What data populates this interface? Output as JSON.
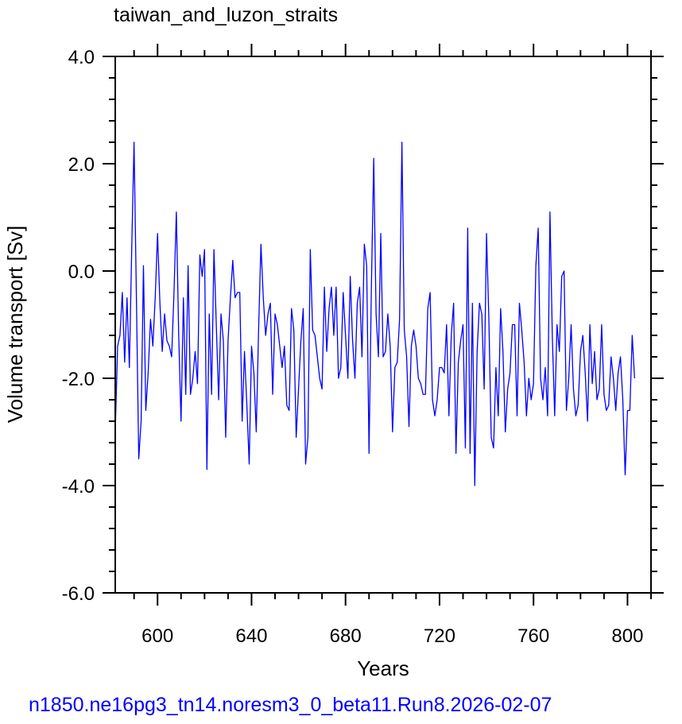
{
  "chart_data": {
    "type": "line",
    "title": "taiwan_and_luzon_straits",
    "xlabel": "Years",
    "ylabel": "Volume transport [Sv]",
    "footer": "n1850.ne16pg3_tn14.noresm3_0_beta11.Run8.2026-02-07",
    "xlim": [
      582,
      810
    ],
    "ylim": [
      -6.0,
      4.0
    ],
    "x_ticks": [
      600,
      640,
      680,
      720,
      760,
      800
    ],
    "x_tick_labels": [
      "600",
      "640",
      "680",
      "720",
      "760",
      "800"
    ],
    "y_ticks": [
      -6.0,
      -4.0,
      -2.0,
      0.0,
      2.0,
      4.0
    ],
    "y_tick_labels": [
      "-6.0",
      "-4.0",
      "-2.0",
      "0.0",
      "2.0",
      "4.0"
    ],
    "line_color": "#0000ff",
    "grid": false,
    "series": [
      {
        "x_start": 582,
        "x_step": 1,
        "values": [
          -3.0,
          -1.4,
          -1.2,
          -0.4,
          -1.7,
          -0.5,
          -1.8,
          0.4,
          2.4,
          -0.5,
          -3.5,
          -2.8,
          0.1,
          -2.6,
          -1.9,
          -0.9,
          -1.4,
          -0.5,
          0.7,
          -0.6,
          -1.5,
          -0.8,
          -1.3,
          -1.4,
          -1.6,
          -0.4,
          1.1,
          -1.2,
          -2.8,
          -0.5,
          -2.3,
          0.1,
          -2.3,
          -2.0,
          -1.5,
          -2.1,
          0.3,
          -0.1,
          0.4,
          -3.7,
          -0.8,
          -2.3,
          0.4,
          -1.0,
          -2.4,
          -0.8,
          -1.3,
          -3.1,
          -1.3,
          -0.5,
          0.2,
          -0.5,
          -0.4,
          -0.4,
          -2.8,
          -1.5,
          -2.5,
          -3.6,
          -1.4,
          -1.9,
          -3.0,
          -1.1,
          0.5,
          -0.5,
          -1.2,
          -0.8,
          -0.6,
          -2.3,
          -0.8,
          -1.0,
          -1.4,
          -1.8,
          -1.4,
          -2.5,
          -2.6,
          -0.7,
          -1.1,
          -3.1,
          -2.2,
          -1.3,
          -0.7,
          -3.6,
          -3.1,
          0.4,
          -1.1,
          -1.2,
          -1.6,
          -2.0,
          -2.2,
          -0.3,
          -1.5,
          -0.7,
          -0.3,
          -1.2,
          -0.3,
          -2.0,
          -1.8,
          -0.4,
          -1.2,
          -2.0,
          -0.1,
          -1.3,
          -2.0,
          -0.6,
          -0.3,
          -1.6,
          0.5,
          0.1,
          -3.4,
          -0.3,
          2.1,
          -0.8,
          -1.6,
          0.7,
          -1.6,
          -1.5,
          -0.8,
          -1.4,
          -3.0,
          -1.8,
          -1.7,
          -0.9,
          2.4,
          -1.1,
          -1.6,
          -2.9,
          -1.4,
          -1.1,
          -1.4,
          -2.0,
          -2.1,
          -2.3,
          -2.3,
          -0.7,
          -0.4,
          -2.4,
          -2.7,
          -2.4,
          -1.8,
          -1.8,
          -1.9,
          -1.0,
          -2.7,
          -1.2,
          -0.6,
          -3.4,
          -1.7,
          -1.3,
          -1.0,
          -3.3,
          0.8,
          -3.4,
          -0.6,
          -4.0,
          -1.5,
          -0.6,
          -0.8,
          -2.2,
          0.7,
          -0.9,
          -3.1,
          -3.3,
          -1.8,
          -2.7,
          -0.7,
          -1.5,
          -3.0,
          -2.2,
          -1.9,
          -1.0,
          -1.0,
          -2.7,
          -0.6,
          -1.1,
          -1.7,
          -2.7,
          -2.0,
          -2.4,
          -2.1,
          0.1,
          0.8,
          -2.0,
          -2.4,
          -1.8,
          -2.7,
          1.1,
          -1.2,
          -2.7,
          -1.0,
          -1.5,
          -0.1,
          0.0,
          -2.6,
          -2.0,
          -1.0,
          -2.2,
          -2.7,
          -2.5,
          -1.5,
          -1.2,
          -1.9,
          -2.8,
          -1.0,
          -2.1,
          -1.5,
          -2.4,
          -2.2,
          -1.0,
          -2.3,
          -2.6,
          -2.5,
          -1.6,
          -2.0,
          -2.6,
          -1.9,
          -1.6,
          -2.4,
          -3.8,
          -2.6,
          -2.6,
          -1.2,
          -2.0
        ]
      }
    ]
  }
}
